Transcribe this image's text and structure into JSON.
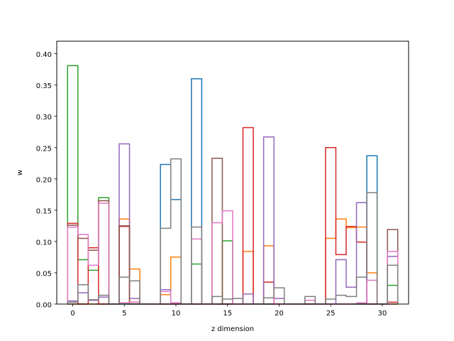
{
  "chart_data": {
    "type": "step",
    "xlabel": "z dimension",
    "ylabel": "w",
    "xlim": [
      -1.55,
      32.55
    ],
    "ylim": [
      0,
      0.42
    ],
    "grid": false,
    "x_ticks": [
      0,
      5,
      10,
      15,
      20,
      25,
      30
    ],
    "y_ticks": [
      0.0,
      0.05,
      0.1,
      0.15,
      0.2,
      0.25,
      0.3,
      0.35,
      0.4
    ],
    "x_tick_labels": [
      "0",
      "5",
      "10",
      "15",
      "20",
      "25",
      "30"
    ],
    "y_tick_labels": [
      "0.00",
      "0.05",
      "0.10",
      "0.15",
      "0.20",
      "0.25",
      "0.30",
      "0.35",
      "0.40"
    ],
    "x": [
      0,
      1,
      2,
      3,
      4,
      5,
      6,
      7,
      8,
      9,
      10,
      11,
      12,
      13,
      14,
      15,
      16,
      17,
      18,
      19,
      20,
      21,
      22,
      23,
      24,
      25,
      26,
      27,
      28,
      29,
      30,
      31
    ],
    "series": [
      {
        "color": "#1f77b4",
        "values": [
          0,
          0,
          0,
          0,
          0,
          0,
          0,
          0,
          0,
          0.223,
          0.167,
          0,
          0.36,
          0,
          0,
          0,
          0,
          0,
          0,
          0,
          0,
          0,
          0,
          0,
          0,
          0,
          0,
          0,
          0,
          0.237,
          0,
          0
        ]
      },
      {
        "color": "#ff7f0e",
        "values": [
          0,
          0,
          0,
          0,
          0,
          0.136,
          0.056,
          0,
          0,
          0.015,
          0.075,
          0,
          0,
          0,
          0,
          0,
          0,
          0.084,
          0,
          0.093,
          0,
          0,
          0,
          0,
          0,
          0.105,
          0.136,
          0.122,
          0.123,
          0.05,
          0,
          0
        ]
      },
      {
        "color": "#2ca02c",
        "values": [
          0.381,
          0.071,
          0.054,
          0.17,
          0,
          0,
          0,
          0,
          0,
          0,
          0,
          0,
          0.064,
          0,
          0,
          0.101,
          0,
          0,
          0,
          0,
          0,
          0,
          0,
          0,
          0,
          0,
          0,
          0,
          0,
          0,
          0,
          0.03
        ]
      },
      {
        "color": "#d62728",
        "values": [
          0.129,
          0,
          0.09,
          0,
          0,
          0.124,
          0.003,
          0,
          0,
          0,
          0,
          0,
          0,
          0,
          0,
          0,
          0,
          0.282,
          0,
          0.035,
          0,
          0,
          0,
          0,
          0,
          0.25,
          0.079,
          0.124,
          0.099,
          0,
          0,
          0.003
        ]
      },
      {
        "color": "#9467bd",
        "values": [
          0.005,
          0.018,
          0.006,
          0.011,
          0,
          0.256,
          0.009,
          0,
          0,
          0.023,
          0,
          0,
          0,
          0,
          0,
          0,
          0,
          0.016,
          0,
          0.267,
          0.009,
          0,
          0,
          0,
          0,
          0,
          0.071,
          0.027,
          0.162,
          0,
          0,
          0.076
        ]
      },
      {
        "color": "#8c564b",
        "values": [
          0.126,
          0.105,
          0.086,
          0.165,
          0,
          0.125,
          0,
          0,
          0,
          0,
          0,
          0,
          0,
          0,
          0.233,
          0,
          0,
          0,
          0,
          0,
          0,
          0,
          0,
          0,
          0,
          0,
          0,
          0,
          0,
          0,
          0,
          0.119
        ]
      },
      {
        "color": "#e377c2",
        "values": [
          0.123,
          0.111,
          0.062,
          0.161,
          0,
          0.002,
          0.003,
          0,
          0,
          0.02,
          0.002,
          0,
          0.104,
          0,
          0.13,
          0.149,
          0,
          0,
          0,
          0.01,
          0,
          0,
          0,
          0.006,
          0,
          0,
          0,
          0,
          0.002,
          0.038,
          0,
          0.084
        ]
      },
      {
        "color": "#7f7f7f",
        "values": [
          0.003,
          0.031,
          0.007,
          0.014,
          0,
          0.043,
          0.037,
          0,
          0,
          0.121,
          0.232,
          0,
          0.123,
          0,
          0.012,
          0.008,
          0.009,
          0,
          0,
          0.01,
          0.026,
          0,
          0,
          0.012,
          0,
          0.008,
          0.014,
          0.012,
          0.043,
          0.178,
          0,
          0.062
        ]
      }
    ]
  }
}
